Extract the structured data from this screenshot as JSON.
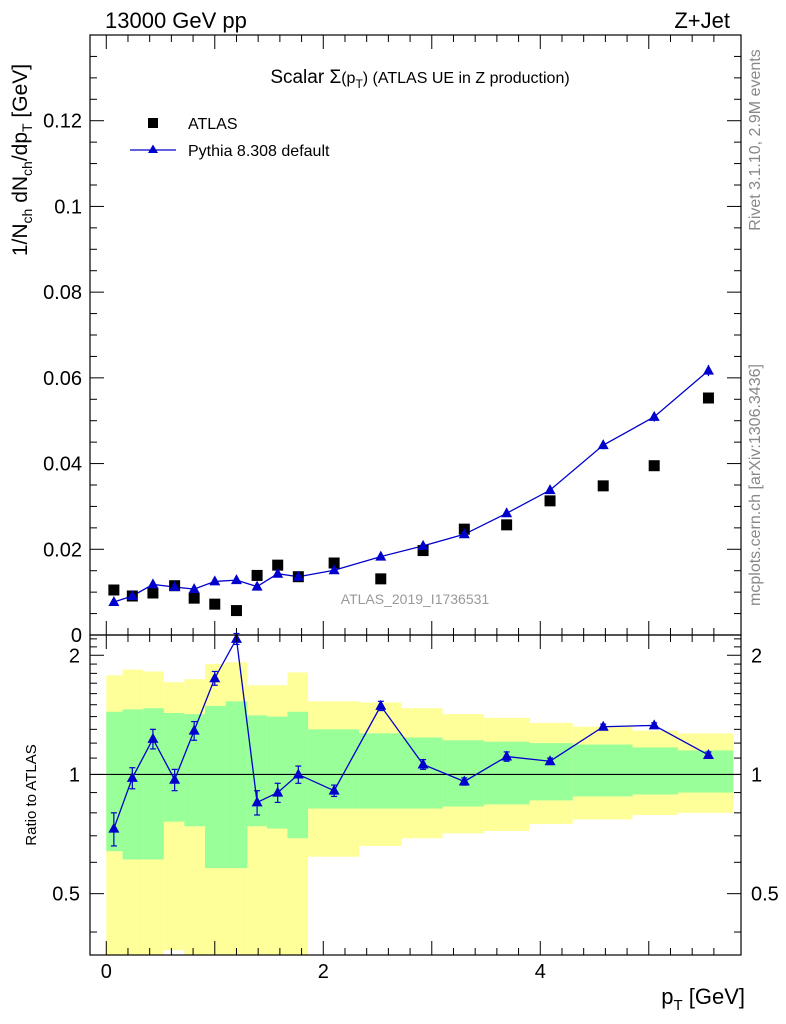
{
  "header": {
    "left": "13000 GeV pp",
    "right": "Z+Jet"
  },
  "side_labels": {
    "rivet": "Rivet 3.1.10,  2.9M events",
    "mcplots": "mcplots.cern.ch [arXiv:1306.3436]"
  },
  "analysis_label": "ATLAS_2019_I1736531",
  "chart_data": [
    {
      "id": "main",
      "type": "scatter",
      "title": {
        "main": "Scalar Σ",
        "paren_open": "(p",
        "sub": "T",
        "paren_close": ")",
        "rest": " (ATLAS UE in Z production)"
      },
      "ylabel": {
        "a": "1/N",
        "a_sub": "ch",
        "b": " dN",
        "b_sub": "ch",
        "c": "/dp",
        "c_sub": "T",
        "d": " [GeV]"
      },
      "xlim": [
        -0.15,
        5.85
      ],
      "ylim": [
        0,
        0.14
      ],
      "yticks": [
        0,
        0.02,
        0.04,
        0.06,
        0.08,
        0.1,
        0.12
      ],
      "ytick_labels": [
        "0",
        "0.02",
        "0.04",
        "0.06",
        "0.08",
        "0.1",
        "0.12"
      ],
      "legend_position": "top-left",
      "series": [
        {
          "name": "ATLAS",
          "marker": "square",
          "color": "#000000",
          "x": [
            0.07,
            0.24,
            0.43,
            0.63,
            0.81,
            1.0,
            1.2,
            1.39,
            1.58,
            1.77,
            2.1,
            2.53,
            2.92,
            3.3,
            3.69,
            4.09,
            4.58,
            5.05,
            5.55
          ],
          "y": [
            0.0105,
            0.0091,
            0.0098,
            0.0115,
            0.0086,
            0.0072,
            0.0057,
            0.0139,
            0.0163,
            0.0136,
            0.0168,
            0.0131,
            0.0197,
            0.0247,
            0.0257,
            0.0313,
            0.0348,
            0.0395,
            0.0553
          ]
        },
        {
          "name": "Pythia 8.308 default",
          "marker": "triangle",
          "color": "#0000cc",
          "x": [
            0.07,
            0.24,
            0.43,
            0.63,
            0.81,
            1.0,
            1.2,
            1.39,
            1.58,
            1.77,
            2.1,
            2.53,
            2.92,
            3.3,
            3.69,
            4.09,
            4.58,
            5.05,
            5.55
          ],
          "y": [
            0.0077,
            0.0091,
            0.0118,
            0.0112,
            0.0107,
            0.0125,
            0.0128,
            0.0113,
            0.0143,
            0.0136,
            0.0151,
            0.0183,
            0.0208,
            0.0235,
            0.0284,
            0.0338,
            0.0443,
            0.0509,
            0.0617
          ],
          "yerr": [
            0.0005,
            0.0004,
            0.0005,
            0.0004,
            0.0004,
            0.0005,
            0.0004,
            0.0004,
            0.0005,
            0.0005,
            0.0005,
            0.0005,
            0.0006,
            0.0006,
            0.0008,
            0.0008,
            0.001,
            0.0011,
            0.0013
          ]
        }
      ]
    },
    {
      "id": "ratio",
      "type": "scatter",
      "ylabel": "Ratio to ATLAS",
      "xlabel": {
        "main": "p",
        "sub": "T",
        "rest": " [GeV]"
      },
      "xlim": [
        -0.15,
        5.85
      ],
      "ylim": [
        0.35,
        2.25
      ],
      "xticks": [
        0,
        2,
        4
      ],
      "xtick_labels": [
        "0",
        "2",
        "4"
      ],
      "yticks": [
        0.5,
        1,
        2
      ],
      "ytick_labels": [
        "0.5",
        "1",
        "2"
      ],
      "reference_line": 1,
      "bins": [
        0.0,
        0.15,
        0.34,
        0.53,
        0.72,
        0.91,
        1.1,
        1.3,
        1.48,
        1.67,
        1.86,
        2.33,
        2.72,
        3.1,
        3.48,
        3.9,
        4.3,
        4.85,
        5.27,
        5.78
      ],
      "band_inner": {
        "color": "#99ff99",
        "lo": [
          0.64,
          0.61,
          0.61,
          0.76,
          0.74,
          0.58,
          0.58,
          0.74,
          0.73,
          0.69,
          0.82,
          0.82,
          0.82,
          0.83,
          0.84,
          0.86,
          0.88,
          0.89,
          0.9
        ],
        "hi": [
          1.44,
          1.46,
          1.47,
          1.43,
          1.42,
          1.49,
          1.53,
          1.41,
          1.4,
          1.44,
          1.3,
          1.27,
          1.24,
          1.22,
          1.21,
          1.2,
          1.19,
          1.17,
          1.15
        ]
      },
      "band_outer": {
        "color": "#ffff99",
        "lo": [
          0.35,
          0.35,
          0.35,
          0.36,
          0.35,
          0.35,
          0.35,
          0.35,
          0.35,
          0.35,
          0.62,
          0.66,
          0.69,
          0.71,
          0.72,
          0.75,
          0.77,
          0.79,
          0.8
        ],
        "hi": [
          1.78,
          1.84,
          1.82,
          1.71,
          1.74,
          1.9,
          1.92,
          1.68,
          1.68,
          1.81,
          1.53,
          1.52,
          1.47,
          1.42,
          1.39,
          1.35,
          1.32,
          1.29,
          1.27
        ]
      },
      "series": [
        {
          "name": "Pythia 8.308 default",
          "marker": "triangle",
          "color": "#0000cc",
          "x": [
            0.07,
            0.24,
            0.43,
            0.63,
            0.81,
            1.0,
            1.2,
            1.39,
            1.58,
            1.77,
            2.1,
            2.53,
            2.92,
            3.3,
            3.69,
            4.09,
            4.58,
            5.05,
            5.55
          ],
          "y": [
            0.73,
            0.98,
            1.23,
            0.97,
            1.29,
            1.75,
            2.2,
            0.85,
            0.9,
            1.0,
            0.91,
            1.49,
            1.06,
            0.96,
            1.11,
            1.08,
            1.32,
            1.33,
            1.12
          ],
          "yerr": [
            0.07,
            0.06,
            0.07,
            0.06,
            0.07,
            0.07,
            0.07,
            0.06,
            0.05,
            0.05,
            0.03,
            0.04,
            0.03,
            0.02,
            0.03,
            0.02,
            0.02,
            0.02,
            0.02
          ]
        }
      ]
    }
  ]
}
